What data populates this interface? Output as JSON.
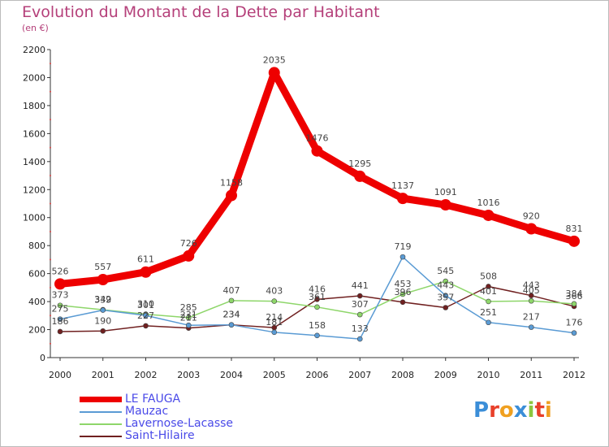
{
  "chart_data": {
    "type": "line",
    "title": "Evolution du Montant de la Dette par Habitant",
    "subtitle": "(en €)",
    "xlabel": "",
    "ylabel": "",
    "x": [
      "2000",
      "2001",
      "2002",
      "2003",
      "2004",
      "2005",
      "2006",
      "2007",
      "2008",
      "2009",
      "2010",
      "2011",
      "2012"
    ],
    "ylim": [
      0,
      2200
    ],
    "yticks": [
      "0",
      "200",
      "400",
      "600",
      "800",
      "1000",
      "1200",
      "1400",
      "1600",
      "1800",
      "2000",
      "2200"
    ],
    "grid": false,
    "legend_position": "bottom-left",
    "series": [
      {
        "name": "LE FAUGA",
        "color": "#ee0000",
        "values": [
          526,
          557,
          611,
          726,
          1158,
          2035,
          1476,
          1295,
          1137,
          1091,
          1016,
          920,
          831
        ],
        "labels": [
          "526",
          "557",
          "611",
          "726",
          "1158",
          "2035",
          "1476",
          "1295",
          "1137",
          "1091",
          "1016",
          "920",
          "831"
        ]
      },
      {
        "name": "Mauzac",
        "color": "#5a9bd4",
        "values": [
          275,
          339,
          301,
          231,
          234,
          181,
          158,
          133,
          719,
          443,
          251,
          217,
          176
        ],
        "labels": [
          "275",
          "339",
          "301",
          "231",
          "234",
          "181",
          "158",
          "133",
          "719",
          "443",
          "251",
          "217",
          "176"
        ]
      },
      {
        "name": "Lavernose-Lacasse",
        "color": "#8ed66a",
        "values": [
          373,
          342,
          310,
          285,
          407,
          403,
          361,
          307,
          453,
          545,
          401,
          405,
          384
        ],
        "labels": [
          "373",
          "342",
          "310",
          "285",
          "407",
          "403",
          "361",
          "307",
          "453",
          "545",
          "401",
          "405",
          "384"
        ]
      },
      {
        "name": "Saint-Hilaire",
        "color": "#702020",
        "values": [
          186,
          190,
          227,
          211,
          234,
          214,
          416,
          441,
          396,
          357,
          508,
          443,
          366
        ],
        "labels": [
          "186",
          "190",
          "227",
          "211",
          "234",
          "214",
          "416",
          "441",
          "396",
          "357",
          "508",
          "443",
          "366"
        ]
      }
    ]
  },
  "logo_text": "Proxiti"
}
